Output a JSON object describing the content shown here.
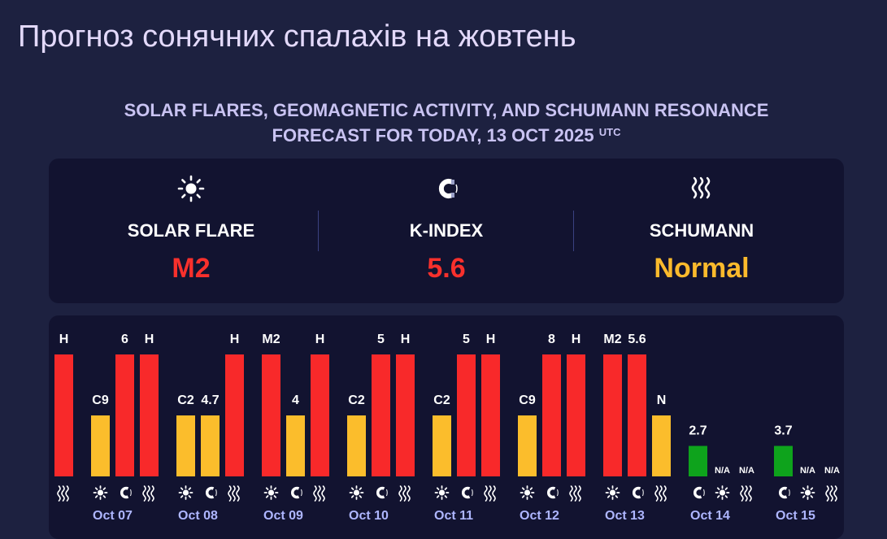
{
  "page": {
    "title": "Прогноз сонячних спалахів на жовтень"
  },
  "heading": {
    "line1": "SOLAR FLARES, GEOMAGNETIC ACTIVITY, AND SCHUMANN RESONANCE",
    "line2": "FORECAST FOR TODAY, 13 OCT 2025",
    "tz": "UTC"
  },
  "summary": {
    "solar": {
      "label": "SOLAR FLARE",
      "value": "M2",
      "icon": "sun-icon",
      "color": "#f8302c"
    },
    "kindex": {
      "label": "K-INDEX",
      "value": "5.6",
      "icon": "magnet-icon",
      "color": "#f8302c"
    },
    "schumann": {
      "label": "SCHUMANN",
      "value": "Normal",
      "icon": "waves-icon",
      "color": "#fbba2c"
    }
  },
  "colors": {
    "high": "#f8292a",
    "medium": "#fbbd2c",
    "low": "#0ea31c"
  },
  "chart_data": {
    "type": "bar",
    "categories": [
      "",
      "Oct 07",
      "Oct 08",
      "Oct 09",
      "Oct 10",
      "Oct 11",
      "Oct 12",
      "Oct 13",
      "Oct 14",
      "Oct 15"
    ],
    "series_icons": [
      "sun-icon",
      "magnet-icon",
      "waves-icon"
    ],
    "days": [
      {
        "date": "",
        "bars": [
          null,
          null,
          {
            "label": "H",
            "level": 1.0,
            "color": "high"
          }
        ]
      },
      {
        "date": "Oct 07",
        "bars": [
          {
            "label": "C9",
            "level": 0.5,
            "color": "medium"
          },
          {
            "label": "6",
            "level": 1.0,
            "color": "high"
          },
          {
            "label": "H",
            "level": 1.0,
            "color": "high"
          }
        ]
      },
      {
        "date": "Oct 08",
        "bars": [
          {
            "label": "C2",
            "level": 0.5,
            "color": "medium"
          },
          {
            "label": "4.7",
            "level": 0.5,
            "color": "medium"
          },
          {
            "label": "H",
            "level": 1.0,
            "color": "high"
          }
        ]
      },
      {
        "date": "Oct 09",
        "bars": [
          {
            "label": "M2",
            "level": 1.0,
            "color": "high"
          },
          {
            "label": "4",
            "level": 0.5,
            "color": "medium"
          },
          {
            "label": "H",
            "level": 1.0,
            "color": "high"
          }
        ]
      },
      {
        "date": "Oct 10",
        "bars": [
          {
            "label": "C2",
            "level": 0.5,
            "color": "medium"
          },
          {
            "label": "5",
            "level": 1.0,
            "color": "high"
          },
          {
            "label": "H",
            "level": 1.0,
            "color": "high"
          }
        ]
      },
      {
        "date": "Oct 11",
        "bars": [
          {
            "label": "C2",
            "level": 0.5,
            "color": "medium"
          },
          {
            "label": "5",
            "level": 1.0,
            "color": "high"
          },
          {
            "label": "H",
            "level": 1.0,
            "color": "high"
          }
        ]
      },
      {
        "date": "Oct 12",
        "bars": [
          {
            "label": "C9",
            "level": 0.5,
            "color": "medium"
          },
          {
            "label": "8",
            "level": 1.0,
            "color": "high"
          },
          {
            "label": "H",
            "level": 1.0,
            "color": "high"
          }
        ]
      },
      {
        "date": "Oct 13",
        "bars": [
          {
            "label": "M2",
            "level": 1.0,
            "color": "high"
          },
          {
            "label": "5.6",
            "level": 1.0,
            "color": "high"
          },
          {
            "label": "N",
            "level": 0.5,
            "color": "medium"
          }
        ]
      },
      {
        "date": "Oct 14",
        "bars": [
          {
            "label": "2.7",
            "level": 0.25,
            "color": "low"
          },
          {
            "label": "N/A",
            "level": 0,
            "color": "none"
          },
          {
            "label": "N/A",
            "level": 0,
            "color": "none"
          }
        ],
        "order": [
          "magnet-icon",
          "sun-icon",
          "waves-icon"
        ]
      },
      {
        "date": "Oct 15",
        "bars": [
          {
            "label": "3.7",
            "level": 0.25,
            "color": "low"
          },
          {
            "label": "N/A",
            "level": 0,
            "color": "none"
          },
          {
            "label": "N/A",
            "level": 0,
            "color": "none"
          }
        ],
        "order": [
          "magnet-icon",
          "sun-icon",
          "waves-icon"
        ]
      }
    ]
  }
}
